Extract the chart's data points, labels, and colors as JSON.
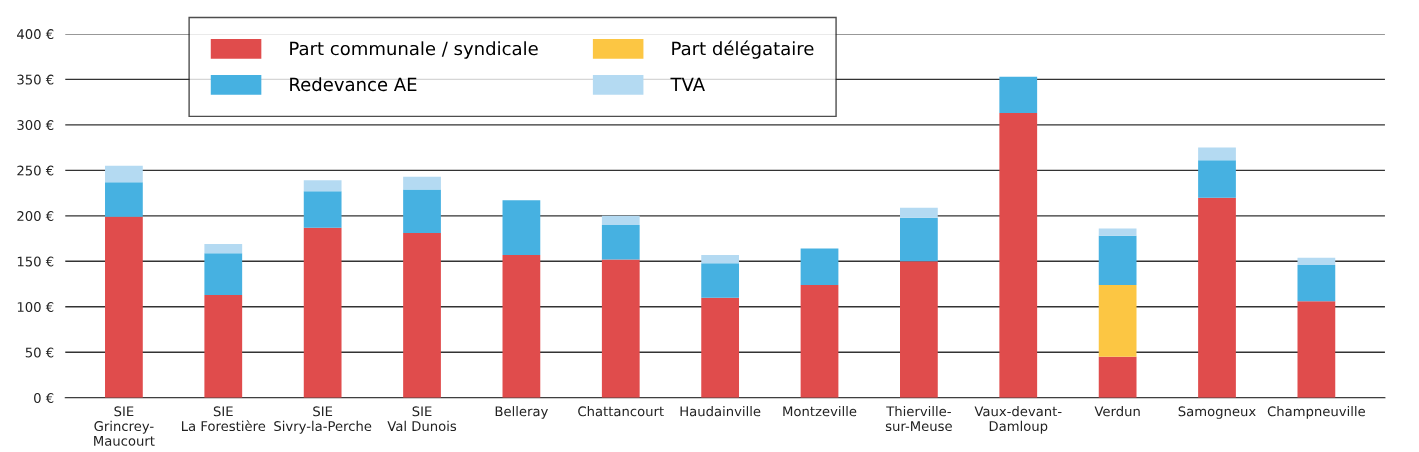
{
  "chart_data": {
    "type": "bar",
    "stacked": true,
    "categories": [
      "SIE\nGrincrey-\nMaucourt",
      "SIE\nLa Forestière",
      "SIE\nSivry-la-Perche",
      "SIE\nVal Dunois",
      "Belleray",
      "Chattancourt",
      "Haudainville",
      "Montzeville",
      "Thierville-\nsur-Meuse",
      "Vaux-devant-\nDamloup",
      "Verdun",
      "Samogneux",
      "Champneuville"
    ],
    "series": [
      {
        "name": "Part communale / syndicale",
        "color": "#e04c4c",
        "values": [
          199,
          113,
          187,
          181,
          157,
          152,
          110,
          124,
          150,
          313,
          45,
          220,
          106
        ]
      },
      {
        "name": "Part délégataire",
        "color": "#fcc643",
        "values": [
          null,
          null,
          null,
          null,
          null,
          null,
          null,
          null,
          null,
          null,
          79,
          null,
          null
        ]
      },
      {
        "name": "Redevance AE",
        "color": "#46b1e1",
        "values": [
          38,
          46,
          40,
          48,
          60,
          38,
          38,
          40,
          48,
          40,
          54,
          41,
          40
        ]
      },
      {
        "name": "TVA",
        "color": "#b4daf2",
        "values": [
          18,
          10,
          12,
          14,
          null,
          10,
          9,
          null,
          11,
          null,
          8,
          14,
          8
        ]
      }
    ],
    "ylim": [
      0,
      400
    ],
    "yticks": [
      {
        "value": 0,
        "label": "0 €"
      },
      {
        "value": 50,
        "label": "50 €"
      },
      {
        "value": 100,
        "label": "100 €"
      },
      {
        "value": 150,
        "label": "150 €"
      },
      {
        "value": 200,
        "label": "200 €"
      },
      {
        "value": 250,
        "label": "250 €"
      },
      {
        "value": 300,
        "label": "300 €"
      },
      {
        "value": 350,
        "label": "350 €"
      },
      {
        "value": 400,
        "label": "400 €"
      }
    ],
    "grid": "y",
    "legend": "top left"
  }
}
